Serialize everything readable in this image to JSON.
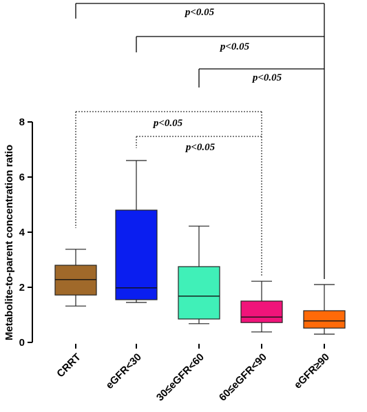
{
  "chart_data": {
    "type": "boxplot",
    "ylabel": "Metabolite-to-parent  concentration  ratio",
    "xlabel": "",
    "ylim": [
      0,
      8
    ],
    "yticks": [
      "0",
      "2",
      "4",
      "6",
      "8"
    ],
    "categories": [
      "CRRT",
      "eGFR<30",
      "30≤eGFR<60",
      "60≤eGFR<90",
      "eGFR≥90"
    ],
    "boxes": [
      {
        "label": "CRRT",
        "min": 1.32,
        "q1": 1.72,
        "median": 2.28,
        "q3": 2.8,
        "max": 3.38,
        "color": "#a0692a"
      },
      {
        "label": "eGFR<30",
        "min": 1.45,
        "q1": 1.55,
        "median": 1.98,
        "q3": 4.8,
        "max": 6.6,
        "color": "#0a1ef0"
      },
      {
        "label": "30≤eGFR<60",
        "min": 0.68,
        "q1": 0.85,
        "median": 1.68,
        "q3": 2.75,
        "max": 4.22,
        "color": "#40f0b8"
      },
      {
        "label": "60≤eGFR<90",
        "min": 0.38,
        "q1": 0.72,
        "median": 0.92,
        "q3": 1.5,
        "max": 2.22,
        "color": "#f0147a"
      },
      {
        "label": "eGFR≥90",
        "min": 0.3,
        "q1": 0.52,
        "median": 0.78,
        "q3": 1.15,
        "max": 2.1,
        "color": "#ff6a08"
      }
    ],
    "significance": [
      {
        "from": "CRRT",
        "to": "eGFR≥90",
        "label": "p<0.05",
        "style": "solid",
        "level": 1
      },
      {
        "from": "eGFR<30",
        "to": "eGFR≥90",
        "label": "p<0.05",
        "style": "solid",
        "level": 2
      },
      {
        "from": "30≤eGFR<60",
        "to": "eGFR≥90",
        "label": "p<0.05",
        "style": "solid",
        "level": 3
      },
      {
        "from": "CRRT",
        "to": "60≤eGFR<90",
        "label": "p<0.05",
        "style": "dotted",
        "level": 4
      },
      {
        "from": "eGFR<30",
        "to": "60≤eGFR<90",
        "label": "p<0.05",
        "style": "dotted",
        "level": 5
      }
    ]
  }
}
